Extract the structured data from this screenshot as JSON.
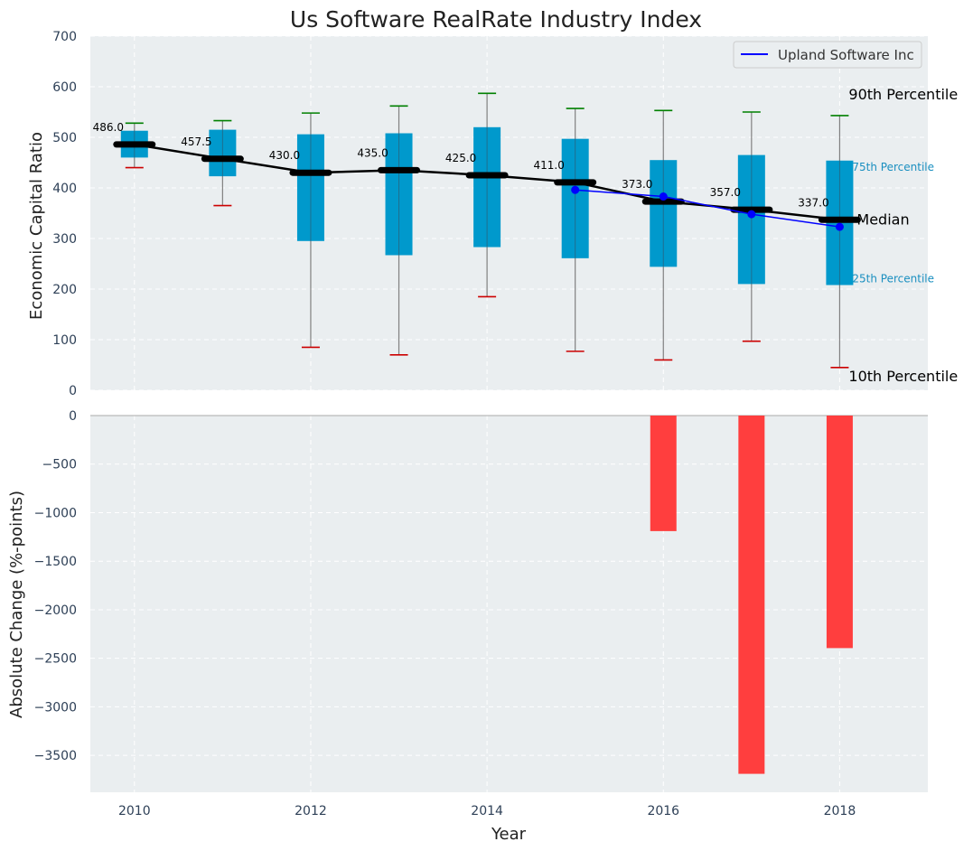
{
  "chart_data": [
    {
      "type": "box",
      "title": "Us Software RealRate Industry Index",
      "xlabel": "",
      "ylabel": "Economic Capital Ratio",
      "ylim": [
        0,
        700
      ],
      "yticks": [
        0,
        100,
        200,
        300,
        400,
        500,
        600,
        700
      ],
      "xlim": [
        2009.5,
        2019.0
      ],
      "grid": true,
      "legend_position": "top-right",
      "colors": {
        "box": "#0099cc",
        "whisker": "#808080",
        "p90": "#008000",
        "p10": "#cc0000",
        "median": "#000000",
        "company": "#0000ff",
        "background": "#eaeef0"
      },
      "x": [
        2010,
        2011,
        2012,
        2013,
        2014,
        2015,
        2016,
        2017,
        2018
      ],
      "p10": [
        440,
        365,
        85,
        70,
        185,
        77,
        60,
        97,
        45
      ],
      "p25": [
        460,
        423,
        295,
        267,
        283,
        261,
        244,
        210,
        208
      ],
      "median": [
        486.0,
        457.5,
        430.0,
        435.0,
        425.0,
        411.0,
        373.0,
        357.0,
        337.0
      ],
      "median_labels": [
        "486.0",
        "457.5",
        "430.0",
        "435.0",
        "425.0",
        "411.0",
        "373.0",
        "357.0",
        "337.0"
      ],
      "p75": [
        513,
        515,
        506,
        508,
        520,
        497,
        455,
        465,
        454
      ],
      "p90": [
        528,
        533,
        548,
        562,
        587,
        557,
        553,
        550,
        543
      ],
      "series": [
        {
          "name": "Upland Software Inc",
          "x": [
            2015,
            2016,
            2017,
            2018
          ],
          "values": [
            396,
            383,
            348,
            323
          ]
        }
      ],
      "annotations": {
        "p90": "90th Percentile",
        "p75": "75th Percentile",
        "median": "Median",
        "p25": "25th Percentile",
        "p10": "10th Percentile"
      }
    },
    {
      "type": "bar",
      "xlabel": "Year",
      "ylabel": "Absolute Change (%-points)",
      "ylim": [
        -3880,
        0
      ],
      "yticks": [
        0,
        -500,
        -1000,
        -1500,
        -2000,
        -2500,
        -3000,
        -3500
      ],
      "ytick_labels": [
        "0",
        "−500",
        "−1000",
        "−1500",
        "−2000",
        "−2500",
        "−3000",
        "−3500"
      ],
      "xticks": [
        2010,
        2012,
        2014,
        2016,
        2018
      ],
      "grid": true,
      "colors": {
        "bar": "#ff3e3e"
      },
      "x": [
        2016,
        2017,
        2018
      ],
      "values": [
        -1190,
        -3690,
        -2395
      ]
    }
  ]
}
